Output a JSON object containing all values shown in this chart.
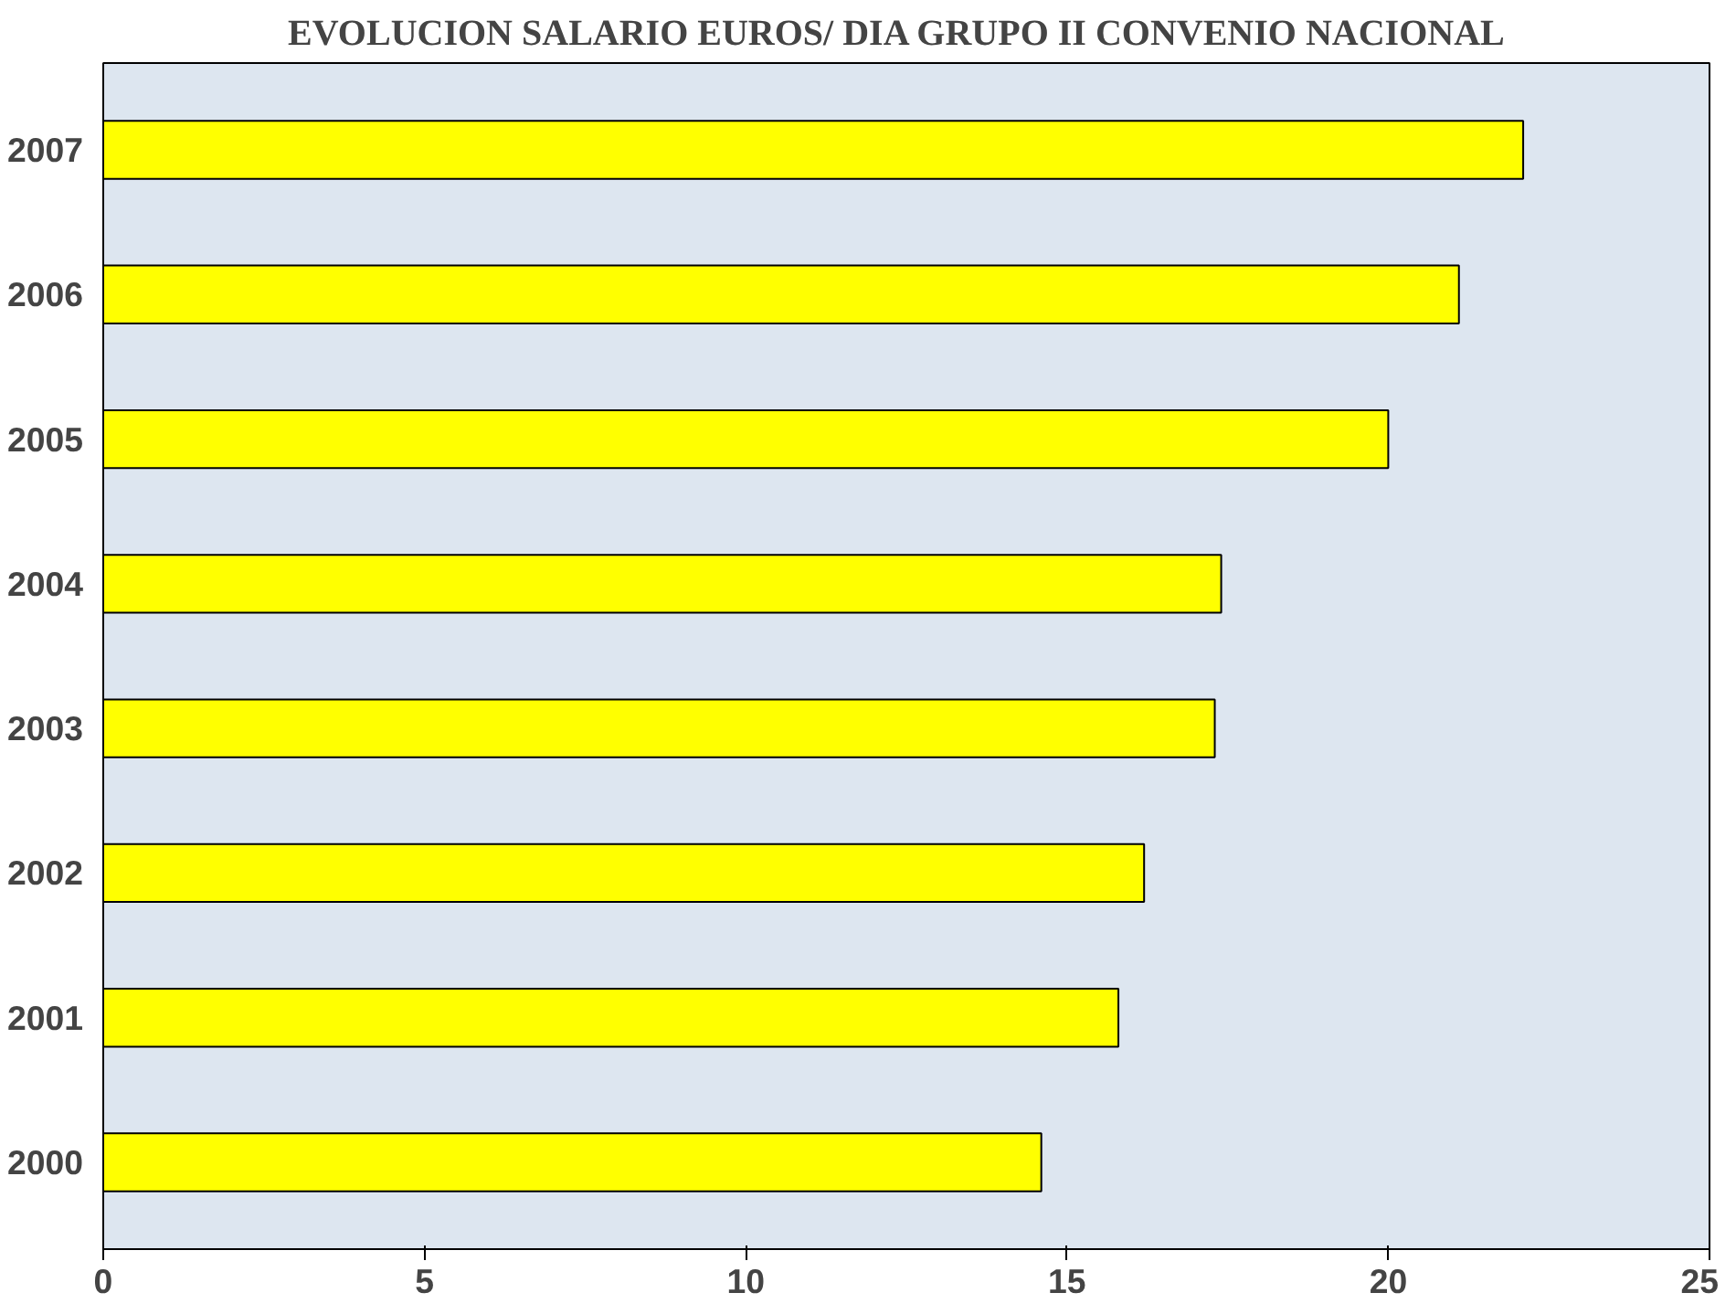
{
  "chart_data": {
    "type": "bar",
    "orientation": "horizontal",
    "title": "EVOLUCION  SALARIO EUROS/ DIA GRUPO II  CONVENIO NACIONAL",
    "categories": [
      "2007",
      "2006",
      "2005",
      "2004",
      "2003",
      "2002",
      "2001",
      "2000"
    ],
    "values": [
      22.1,
      21.1,
      20.0,
      17.4,
      17.3,
      16.2,
      15.8,
      14.6
    ],
    "color": "#ffff00",
    "xlim": [
      0,
      25
    ],
    "xticks": [
      0,
      5,
      10,
      15,
      20,
      25
    ],
    "grid": false
  }
}
